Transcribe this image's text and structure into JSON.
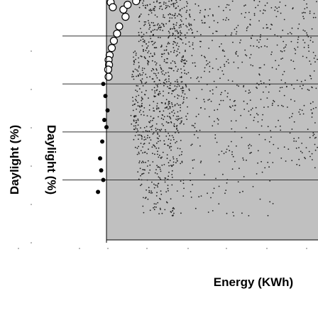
{
  "chart_data": {
    "type": "scatter",
    "xlabel": "Energy (KWh)",
    "ylabel": "Daylight (%)",
    "ylabel_mirrored": "Daylight (%)",
    "xlim": [
      0,
      100
    ],
    "ylim": [
      0,
      100
    ],
    "y_gridlines": [
      25,
      45,
      65,
      85
    ],
    "grid": "horizontal",
    "legend": "none",
    "colors": {
      "plot_background": "#c0c0c0",
      "gridline": "#333333",
      "dense_point": "#202020",
      "highlight_fill": "#ffffff",
      "highlight_stroke": "#000000",
      "selected_fill": "#000000",
      "axis": "#000000"
    },
    "series": [
      {
        "role": "population",
        "marker": "small-dot",
        "bands": [
          {
            "x": [
              15,
              40
            ],
            "y": [
              80,
              100
            ],
            "count": 240
          },
          {
            "x": [
              40,
              100
            ],
            "y": [
              80,
              100
            ],
            "count": 170
          },
          {
            "x": [
              12,
              38
            ],
            "y": [
              55,
              80
            ],
            "count": 300
          },
          {
            "x": [
              38,
              100
            ],
            "y": [
              55,
              80
            ],
            "count": 190
          },
          {
            "x": [
              11,
              36
            ],
            "y": [
              30,
              55
            ],
            "count": 260
          },
          {
            "x": [
              36,
              100
            ],
            "y": [
              30,
              55
            ],
            "count": 150
          },
          {
            "x": [
              12,
              32
            ],
            "y": [
              10,
              30
            ],
            "count": 110
          },
          {
            "x": [
              32,
              80
            ],
            "y": [
              10,
              30
            ],
            "count": 50
          }
        ]
      },
      {
        "role": "pareto-front",
        "marker": "open-circle",
        "points": [
          [
            8,
            96
          ],
          [
            9,
            93
          ],
          [
            6,
            89
          ],
          [
            5,
            86
          ],
          [
            3.5,
            83
          ],
          [
            2.5,
            80
          ],
          [
            1.5,
            77
          ],
          [
            1,
            75
          ],
          [
            1.2,
            73
          ],
          [
            0.8,
            71
          ],
          [
            1,
            68
          ],
          [
            2,
            99
          ],
          [
            3,
            97
          ],
          [
            10,
            98
          ],
          [
            14,
            99.5
          ]
        ]
      },
      {
        "role": "selected",
        "marker": "filled-dot",
        "points": [
          [
            -1.5,
            65
          ],
          [
            -0.5,
            60
          ],
          [
            0.5,
            54
          ],
          [
            -1,
            50
          ],
          [
            0,
            47
          ],
          [
            -2,
            41
          ],
          [
            -3,
            34
          ],
          [
            -2.5,
            29
          ],
          [
            -4,
            20
          ],
          [
            -1.5,
            25
          ]
        ]
      }
    ]
  }
}
